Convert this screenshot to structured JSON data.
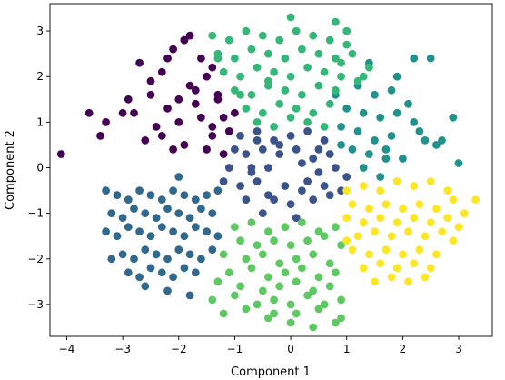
{
  "chart_data": {
    "type": "scatter",
    "title": "",
    "xlabel": "Component 1",
    "ylabel": "Component 2",
    "xlim": [
      -4.3,
      3.6
    ],
    "ylim": [
      -3.7,
      3.6
    ],
    "xticks": [
      "−4",
      "−3",
      "−2",
      "−1",
      "0",
      "1",
      "2",
      "3"
    ],
    "xtick_values": [
      -4,
      -3,
      -2,
      -1,
      0,
      1,
      2,
      3
    ],
    "yticks": [
      "−3",
      "−2",
      "−1",
      "0",
      "1",
      "2",
      "3"
    ],
    "ytick_values": [
      -3,
      -2,
      -1,
      0,
      1,
      2,
      3
    ],
    "grid": false,
    "legend": "none",
    "colors": [
      "#440154",
      "#3b528b",
      "#21918c",
      "#5ec962",
      "#fde725",
      "#31688e",
      "#35b779"
    ],
    "series": [
      {
        "cluster": 0,
        "color": "#440154",
        "x": [
          -2.3,
          -2.1,
          -1.9,
          -1.6,
          -1.8,
          -2.5,
          -2.7,
          -2.2,
          -1.5,
          -1.3,
          -1.2,
          -2.0,
          -2.4,
          -1.7,
          -1.4,
          -2.8,
          -2.6,
          -1.9,
          -1.1,
          -1.6,
          -2.3,
          -2.0,
          -1.4,
          -1.8,
          -2.5,
          -1.2,
          -2.1,
          -1.5,
          -2.9,
          -1.3,
          -3.6,
          -3.3,
          -3.4,
          -4.1,
          -3.0,
          -2.2,
          -1.7,
          -1.0,
          -1.4,
          -1.9
        ],
        "y": [
          2.1,
          2.6,
          2.8,
          2.4,
          1.8,
          1.6,
          2.3,
          1.3,
          2.0,
          1.6,
          1.1,
          1.0,
          0.9,
          1.4,
          0.7,
          1.2,
          0.6,
          0.5,
          0.8,
          1.1,
          0.7,
          1.5,
          2.2,
          2.9,
          1.9,
          0.3,
          0.4,
          0.4,
          1.5,
          1.5,
          1.2,
          1.0,
          0.7,
          0.3,
          1.2,
          2.4,
          1.7,
          1.2,
          0.9,
          2.8
        ]
      },
      {
        "cluster": 1,
        "color": "#3b528b",
        "x": [
          -0.9,
          -0.6,
          -0.3,
          0.0,
          0.3,
          0.6,
          -0.8,
          -0.5,
          -0.2,
          0.1,
          0.4,
          0.7,
          -1.1,
          -0.7,
          -0.4,
          0.2,
          0.5,
          0.8,
          -0.9,
          -0.6,
          -0.1,
          0.3,
          0.6,
          -0.8,
          -0.3,
          0.0,
          0.4,
          -1.2,
          -0.5,
          0.1,
          0.9,
          -0.2,
          0.5,
          -0.7,
          0.2,
          -1.0,
          -0.4,
          0.7,
          1.0,
          -0.6
        ],
        "y": [
          0.7,
          0.8,
          0.6,
          0.7,
          0.8,
          0.6,
          0.3,
          0.4,
          0.3,
          0.4,
          0.2,
          0.3,
          0.0,
          0.0,
          0.0,
          0.1,
          -0.1,
          0.0,
          -0.4,
          -0.3,
          -0.4,
          -0.3,
          -0.4,
          -0.7,
          -0.7,
          -0.8,
          -0.7,
          -0.3,
          -1.0,
          -1.1,
          -0.5,
          0.5,
          0.4,
          -0.1,
          -0.5,
          0.4,
          -0.6,
          -0.6,
          -0.2,
          0.6
        ]
      },
      {
        "cluster": 2,
        "color": "#21918c",
        "x": [
          1.2,
          1.5,
          1.8,
          2.1,
          1.0,
          1.3,
          1.6,
          1.9,
          2.2,
          0.9,
          1.2,
          1.5,
          1.8,
          2.4,
          1.1,
          1.4,
          1.7,
          2.0,
          2.6,
          1.3,
          1.6,
          2.9,
          3.0,
          2.3,
          2.2,
          0.8,
          1.9,
          2.5,
          1.7,
          2.7,
          1.4,
          0.9
        ],
        "y": [
          1.8,
          1.6,
          1.7,
          1.4,
          1.3,
          1.2,
          1.1,
          1.2,
          1.0,
          0.9,
          0.8,
          0.6,
          0.7,
          0.6,
          0.4,
          0.3,
          0.2,
          0.2,
          0.5,
          0.0,
          -0.2,
          1.1,
          0.1,
          0.8,
          2.4,
          1.6,
          2.0,
          2.4,
          0.4,
          0.6,
          2.3,
          0.5
        ]
      },
      {
        "cluster": 3,
        "color": "#5ec962",
        "x": [
          -1.0,
          -0.7,
          -0.4,
          -0.1,
          0.2,
          0.5,
          0.8,
          -0.9,
          -0.6,
          -0.3,
          0.0,
          0.3,
          0.6,
          0.9,
          -1.2,
          -0.8,
          -0.5,
          -0.2,
          0.1,
          0.4,
          0.7,
          -1.1,
          -0.7,
          -0.4,
          -0.1,
          0.2,
          0.5,
          0.8,
          -1.3,
          -0.9,
          -0.5,
          -0.2,
          0.1,
          0.4,
          0.7,
          -1.4,
          -1.0,
          -0.6,
          -0.3,
          0.0,
          0.3,
          0.6,
          0.9,
          -1.2,
          -0.8,
          -0.4,
          0.1,
          0.5,
          0.9,
          0.0,
          0.4,
          0.8,
          -0.3
        ],
        "y": [
          -1.3,
          -1.2,
          -1.4,
          -1.3,
          -1.2,
          -1.4,
          -1.3,
          -1.6,
          -1.7,
          -1.6,
          -1.7,
          -1.6,
          -1.5,
          -1.7,
          -1.9,
          -2.0,
          -1.9,
          -2.1,
          -2.0,
          -1.9,
          -2.1,
          -2.3,
          -2.2,
          -2.4,
          -2.3,
          -2.2,
          -2.4,
          -2.3,
          -2.5,
          -2.6,
          -2.7,
          -2.6,
          -2.5,
          -2.7,
          -2.6,
          -2.9,
          -2.8,
          -3.0,
          -2.9,
          -3.0,
          -2.8,
          -3.0,
          -2.9,
          -3.2,
          -3.1,
          -3.3,
          -3.2,
          -3.1,
          -3.3,
          -3.4,
          -3.5,
          -3.4,
          -3.2
        ]
      },
      {
        "cluster": 4,
        "color": "#fde725",
        "x": [
          1.0,
          1.3,
          1.6,
          1.9,
          2.2,
          2.5,
          2.8,
          1.1,
          1.4,
          1.7,
          2.0,
          2.3,
          2.6,
          2.9,
          1.0,
          1.3,
          1.6,
          1.9,
          2.2,
          2.5,
          2.8,
          3.1,
          1.2,
          1.5,
          1.8,
          2.1,
          2.4,
          2.7,
          3.0,
          1.1,
          1.4,
          1.7,
          2.0,
          2.3,
          2.6,
          1.3,
          1.6,
          1.9,
          2.2,
          2.5,
          1.5,
          1.8,
          2.1,
          2.4,
          3.3,
          2.9,
          1.0
        ],
        "y": [
          -0.5,
          -0.4,
          -0.5,
          -0.3,
          -0.4,
          -0.3,
          -0.5,
          -0.8,
          -0.9,
          -0.8,
          -0.9,
          -0.8,
          -0.9,
          -0.7,
          -1.1,
          -1.2,
          -1.1,
          -1.2,
          -1.1,
          -1.2,
          -1.1,
          -1.0,
          -1.5,
          -1.4,
          -1.5,
          -1.4,
          -1.5,
          -1.4,
          -1.3,
          -1.8,
          -1.9,
          -1.8,
          -1.9,
          -1.8,
          -1.9,
          -2.2,
          -2.1,
          -2.2,
          -2.1,
          -2.2,
          -2.5,
          -2.4,
          -2.5,
          -2.4,
          -0.7,
          -1.6,
          -1.6
        ]
      },
      {
        "cluster": 5,
        "color": "#31688e",
        "x": [
          -3.3,
          -3.1,
          -2.9,
          -2.7,
          -2.5,
          -2.3,
          -2.1,
          -1.9,
          -1.7,
          -1.5,
          -1.3,
          -3.2,
          -3.0,
          -2.8,
          -2.6,
          -2.4,
          -2.2,
          -2.0,
          -1.8,
          -1.6,
          -1.4,
          -3.3,
          -3.1,
          -2.9,
          -2.7,
          -2.5,
          -2.3,
          -2.1,
          -1.9,
          -1.7,
          -1.5,
          -1.3,
          -3.0,
          -2.8,
          -2.6,
          -2.4,
          -2.2,
          -2.0,
          -1.8,
          -1.6,
          -1.4,
          -2.9,
          -2.7,
          -2.5,
          -2.3,
          -2.1,
          -1.9,
          -1.7,
          -2.6,
          -2.2,
          -1.8,
          -3.2,
          -2.0
        ],
        "y": [
          -0.5,
          -0.6,
          -0.7,
          -0.5,
          -0.6,
          -0.7,
          -0.5,
          -0.6,
          -0.7,
          -0.6,
          -0.5,
          -1.0,
          -1.1,
          -0.9,
          -1.0,
          -1.1,
          -0.9,
          -1.0,
          -1.1,
          -0.9,
          -1.0,
          -1.4,
          -1.5,
          -1.3,
          -1.4,
          -1.5,
          -1.3,
          -1.4,
          -1.5,
          -1.3,
          -1.4,
          -1.5,
          -1.9,
          -2.0,
          -1.8,
          -1.9,
          -2.0,
          -1.8,
          -1.9,
          -2.0,
          -1.8,
          -2.3,
          -2.4,
          -2.2,
          -2.3,
          -2.4,
          -2.2,
          -2.3,
          -2.6,
          -2.7,
          -2.8,
          -2.0,
          -0.2
        ]
      },
      {
        "cluster": 6,
        "color": "#35b779",
        "x": [
          -1.4,
          -1.1,
          -0.8,
          -0.5,
          -0.2,
          0.1,
          0.4,
          0.7,
          1.0,
          -1.3,
          -1.0,
          -0.7,
          -0.4,
          -0.1,
          0.2,
          0.5,
          0.8,
          1.1,
          1.4,
          -1.2,
          -0.9,
          -0.6,
          -0.3,
          0.0,
          0.3,
          0.6,
          0.9,
          1.2,
          -1.0,
          -0.7,
          -0.4,
          -0.1,
          0.2,
          0.5,
          0.8,
          -0.8,
          -0.5,
          -0.2,
          0.1,
          0.4,
          0.7,
          -0.6,
          -0.3,
          0.0,
          0.3,
          0.6,
          -1.3,
          -0.9,
          0.9,
          1.3,
          0.0,
          0.8,
          1.0,
          -0.4
        ],
        "y": [
          2.9,
          2.8,
          3.0,
          2.9,
          2.8,
          3.0,
          2.9,
          2.8,
          2.7,
          2.5,
          2.4,
          2.6,
          2.5,
          2.4,
          2.6,
          2.5,
          2.4,
          2.5,
          2.2,
          2.1,
          2.0,
          2.2,
          2.1,
          2.0,
          2.2,
          2.1,
          2.0,
          1.9,
          1.7,
          1.6,
          1.8,
          1.7,
          1.6,
          1.8,
          1.7,
          1.3,
          1.2,
          1.4,
          1.3,
          1.2,
          1.4,
          1.0,
          0.9,
          1.1,
          1.0,
          0.9,
          2.4,
          1.6,
          2.3,
          2.0,
          3.3,
          3.2,
          3.0,
          1.9
        ]
      }
    ]
  }
}
